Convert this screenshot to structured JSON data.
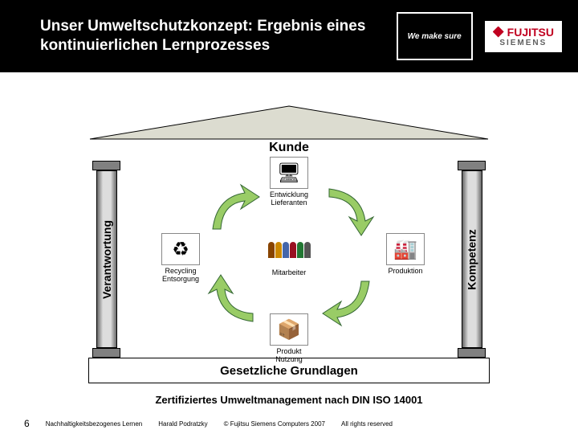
{
  "header": {
    "title": "Unser Umweltschutzkonzept: Ergebnis eines kontinuierlichen Lernprozesses",
    "tagline": "We make sure",
    "logo_main": "FUJITSU",
    "logo_sub": "SIEMENS"
  },
  "temple": {
    "roof_label": "Kunde",
    "pillar_left": "Verantwortung",
    "pillar_right": "Kompetenz",
    "foundation": "Gesetzliche Grundlagen",
    "roof_fill": "#dcdcd0",
    "roof_stroke": "#000000"
  },
  "cycle": {
    "arrow_fill": "#99cc66",
    "arrow_stroke": "#336633",
    "nodes": {
      "top": {
        "label": "Entwicklung\nLieferanten",
        "glyph": "🖥"
      },
      "right": {
        "label": "Produktion",
        "glyph": "🏭"
      },
      "bottom": {
        "label": "Produkt\nNutzung",
        "glyph": "📦"
      },
      "left": {
        "label": "Recycling\nEntsorgung",
        "glyph": "♻"
      },
      "center": {
        "label": "Mitarbeiter"
      }
    }
  },
  "sub_caption": "Zertifiziertes Umweltmanagement nach DIN ISO 14001",
  "footer": {
    "slide_number": "6",
    "f1": "Nachhaltigkeitsbezogenes Lernen",
    "f2": "Harald Podratzky",
    "f3": "© Fujitsu Siemens Computers 2007",
    "f4": "All rights reserved"
  },
  "colors": {
    "header_bg": "#000000",
    "header_text": "#ffffff",
    "logo_red": "#c00020"
  }
}
